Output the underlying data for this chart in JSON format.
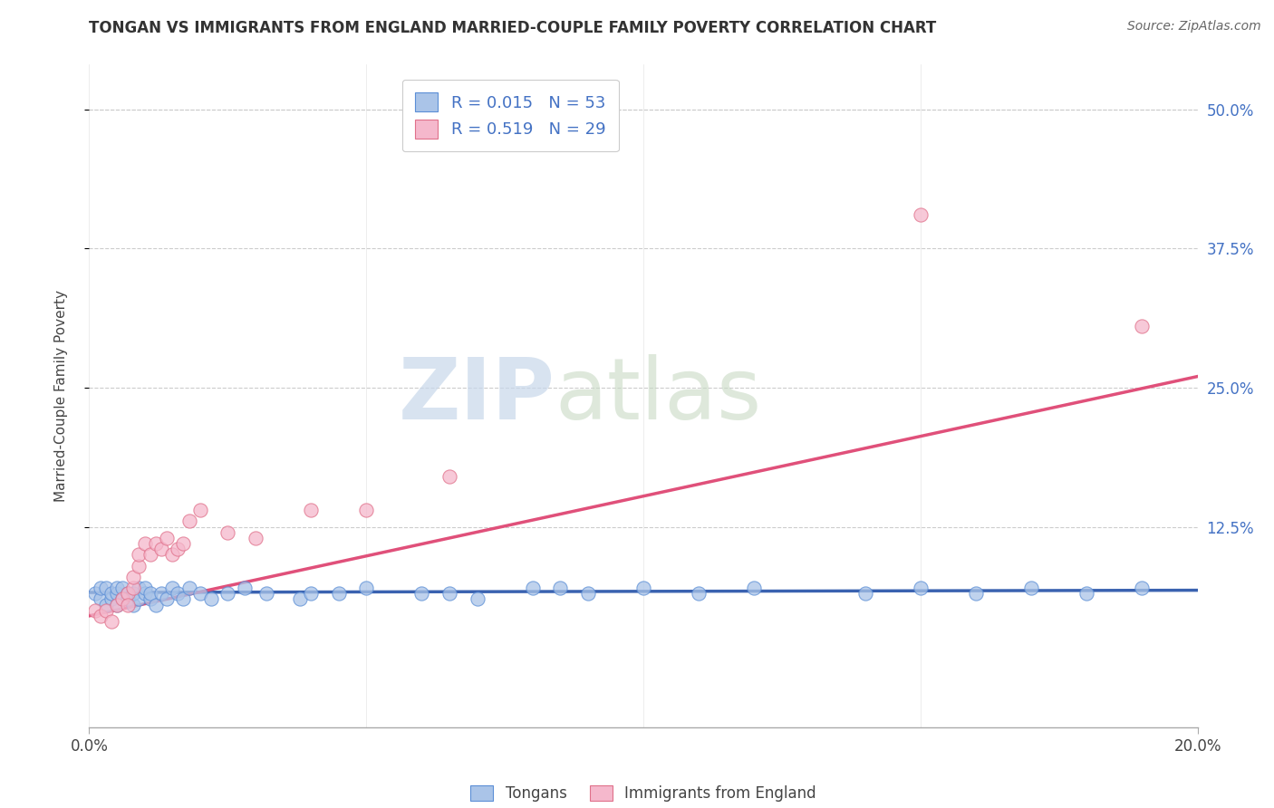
{
  "title": "TONGAN VS IMMIGRANTS FROM ENGLAND MARRIED-COUPLE FAMILY POVERTY CORRELATION CHART",
  "source": "Source: ZipAtlas.com",
  "ylabel": "Married-Couple Family Poverty",
  "xlim": [
    0.0,
    0.2
  ],
  "ylim": [
    -0.055,
    0.54
  ],
  "ytick_positions_right": [
    0.5,
    0.375,
    0.25,
    0.125
  ],
  "ytick_labels_right": [
    "50.0%",
    "37.5%",
    "25.0%",
    "12.5%"
  ],
  "color_tongan_fill": "#aac4e8",
  "color_tongan_edge": "#5b8ed6",
  "color_england_fill": "#f5b8cc",
  "color_england_edge": "#e0708a",
  "color_line_tongan": "#3a62b0",
  "color_line_england": "#e0507a",
  "background_color": "#ffffff",
  "grid_color": "#cccccc",
  "watermark_zip": "ZIP",
  "watermark_atlas": "atlas",
  "tongan_x": [
    0.001,
    0.002,
    0.002,
    0.003,
    0.003,
    0.004,
    0.004,
    0.005,
    0.005,
    0.005,
    0.006,
    0.006,
    0.007,
    0.007,
    0.008,
    0.008,
    0.009,
    0.009,
    0.01,
    0.01,
    0.011,
    0.011,
    0.012,
    0.013,
    0.014,
    0.015,
    0.016,
    0.017,
    0.018,
    0.02,
    0.022,
    0.025,
    0.028,
    0.032,
    0.038,
    0.045,
    0.05,
    0.06,
    0.07,
    0.08,
    0.09,
    0.1,
    0.11,
    0.12,
    0.14,
    0.15,
    0.16,
    0.17,
    0.18,
    0.19,
    0.04,
    0.065,
    0.085
  ],
  "tongan_y": [
    0.065,
    0.06,
    0.07,
    0.055,
    0.07,
    0.06,
    0.065,
    0.055,
    0.065,
    0.07,
    0.06,
    0.07,
    0.065,
    0.06,
    0.055,
    0.065,
    0.07,
    0.06,
    0.065,
    0.07,
    0.06,
    0.065,
    0.055,
    0.065,
    0.06,
    0.07,
    0.065,
    0.06,
    0.07,
    0.065,
    0.06,
    0.065,
    0.07,
    0.065,
    0.06,
    0.065,
    0.07,
    0.065,
    0.06,
    0.07,
    0.065,
    0.07,
    0.065,
    0.07,
    0.065,
    0.07,
    0.065,
    0.07,
    0.065,
    0.07,
    0.065,
    0.065,
    0.07
  ],
  "england_x": [
    0.001,
    0.002,
    0.003,
    0.004,
    0.005,
    0.006,
    0.007,
    0.007,
    0.008,
    0.008,
    0.009,
    0.009,
    0.01,
    0.011,
    0.012,
    0.013,
    0.014,
    0.015,
    0.016,
    0.017,
    0.018,
    0.02,
    0.025,
    0.03,
    0.04,
    0.05,
    0.065,
    0.15,
    0.19
  ],
  "england_y": [
    0.05,
    0.045,
    0.05,
    0.04,
    0.055,
    0.06,
    0.065,
    0.055,
    0.07,
    0.08,
    0.09,
    0.1,
    0.11,
    0.1,
    0.11,
    0.105,
    0.115,
    0.1,
    0.105,
    0.11,
    0.13,
    0.14,
    0.12,
    0.115,
    0.14,
    0.14,
    0.17,
    0.405,
    0.305
  ],
  "tongan_line_x": [
    0.0,
    0.2
  ],
  "tongan_line_y": [
    0.066,
    0.068
  ],
  "england_line_x": [
    0.0,
    0.2
  ],
  "england_line_y": [
    0.045,
    0.26
  ],
  "legend_label_1": "Tongans",
  "legend_label_2": "Immigrants from England",
  "legend_r1": "R = 0.015",
  "legend_n1": "N = 53",
  "legend_r2": "R = 0.519",
  "legend_n2": "N = 29"
}
